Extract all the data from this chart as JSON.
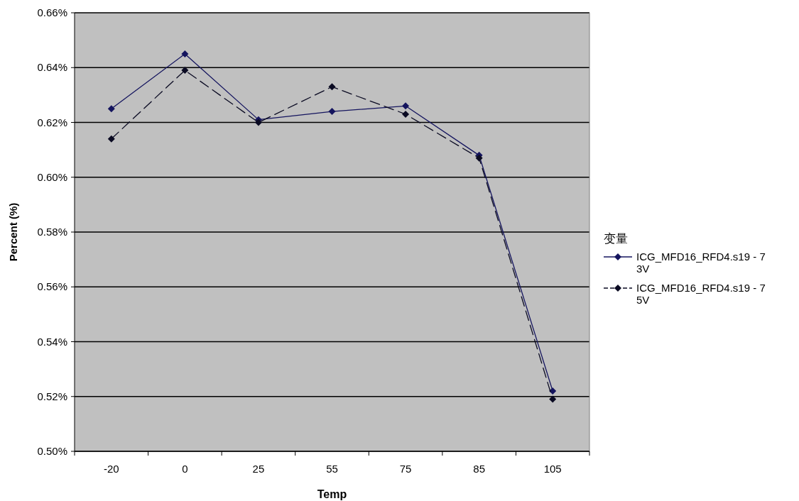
{
  "chart_data": {
    "type": "line",
    "xlabel": "Temp",
    "ylabel": "Percent (%)",
    "legend_title": "变量",
    "legend": "right",
    "grid": "y",
    "marker": "diamond",
    "categories": [
      "-20",
      "0",
      "25",
      "55",
      "75",
      "85",
      "105"
    ],
    "ylim": [
      0.5,
      0.66
    ],
    "yticks": [
      {
        "value": 0.5,
        "label": "0.50%"
      },
      {
        "value": 0.52,
        "label": "0.52%"
      },
      {
        "value": 0.54,
        "label": "0.54%"
      },
      {
        "value": 0.56,
        "label": "0.56%"
      },
      {
        "value": 0.58,
        "label": "0.58%"
      },
      {
        "value": 0.6,
        "label": "0.60%"
      },
      {
        "value": 0.62,
        "label": "0.62%"
      },
      {
        "value": 0.64,
        "label": "0.64%"
      },
      {
        "value": 0.66,
        "label": "0.66%"
      }
    ],
    "series": [
      {
        "name": "ICG_MFD16_RFD4.s19 - 7\n3V",
        "color": "#14145e",
        "line_style": "solid",
        "values": [
          0.625,
          0.645,
          0.621,
          0.624,
          0.626,
          0.608,
          0.522
        ]
      },
      {
        "name": "ICG_MFD16_RFD4.s19 - 7\n5V",
        "color": "#0a0a22",
        "line_style": "dashed",
        "values": [
          0.614,
          0.639,
          0.62,
          0.633,
          0.623,
          0.607,
          0.519
        ]
      }
    ]
  }
}
